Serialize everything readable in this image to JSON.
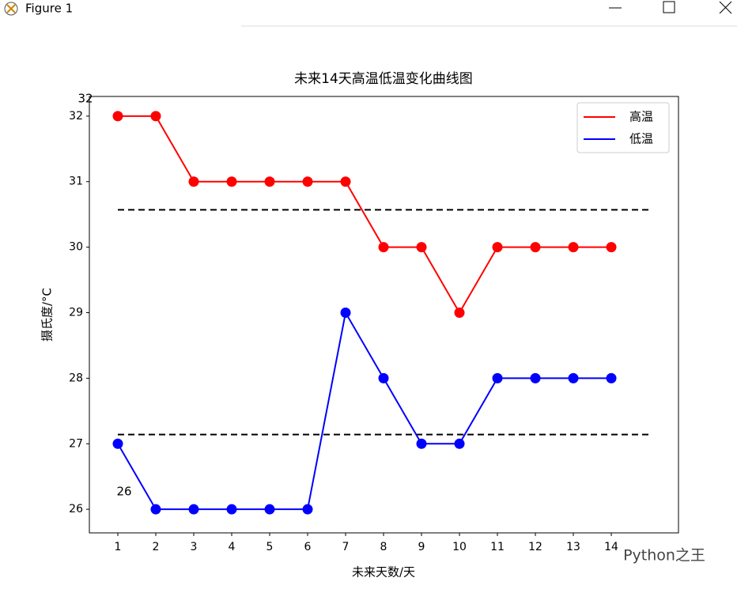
{
  "window": {
    "title": "Figure 1"
  },
  "chart_data": {
    "type": "line",
    "title": "未来14天高温低温变化曲线图",
    "x_label": "未来天数/天",
    "y_label": "摄氏度/°C",
    "x": [
      1,
      2,
      3,
      4,
      5,
      6,
      7,
      8,
      9,
      10,
      11,
      12,
      13,
      14
    ],
    "series": [
      {
        "name": "高温",
        "color": "#ff0000",
        "values": [
          32,
          32,
          31,
          31,
          31,
          31,
          31,
          30,
          30,
          29,
          30,
          30,
          30,
          30
        ]
      },
      {
        "name": "低温",
        "color": "#0000ff",
        "values": [
          27,
          26,
          26,
          26,
          26,
          26,
          29,
          28,
          27,
          27,
          28,
          28,
          28,
          28
        ]
      }
    ],
    "reference_lines": [
      {
        "y": 30.57,
        "x": [
          1,
          15
        ],
        "color": "#000000"
      },
      {
        "y": 27.14,
        "x": [
          1,
          15
        ],
        "color": "#000000"
      }
    ],
    "annotations": [
      "32",
      "26"
    ],
    "xlim": [
      0.25,
      15.77
    ],
    "ylim": [
      25.64,
      32.3
    ],
    "xticks": [
      1,
      2,
      3,
      4,
      5,
      6,
      7,
      8,
      9,
      10,
      11,
      12,
      13,
      14
    ],
    "yticks": [
      26,
      27,
      28,
      29,
      30,
      31,
      32
    ],
    "legend": "upper right",
    "watermark": "Python之王"
  }
}
